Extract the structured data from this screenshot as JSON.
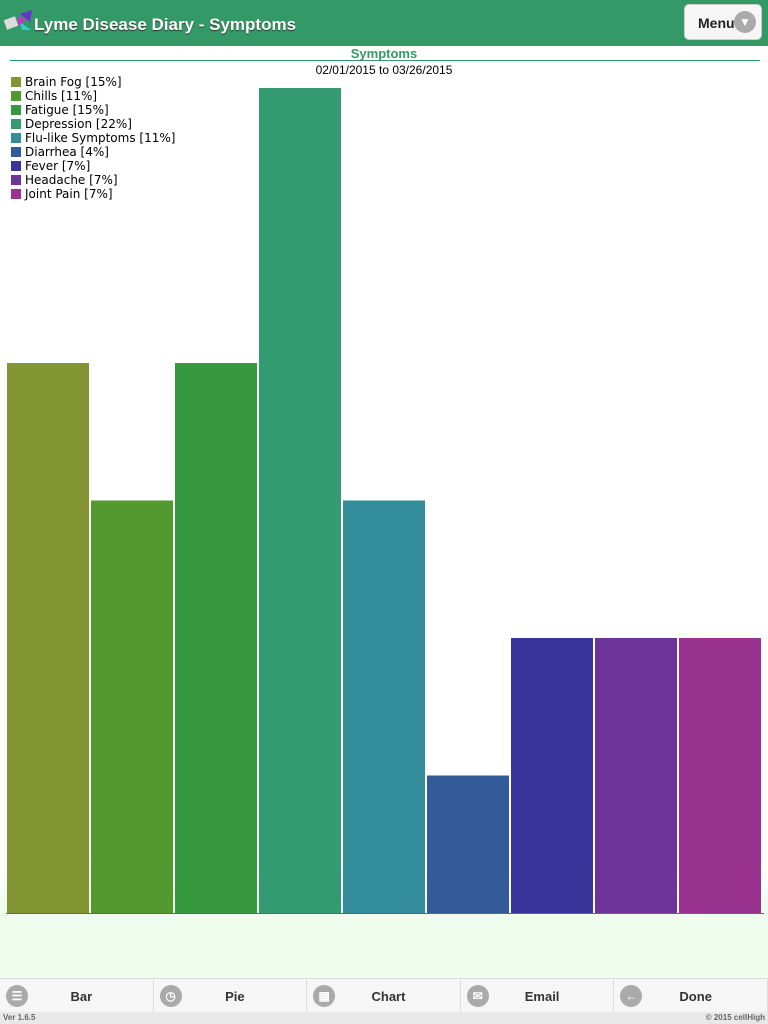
{
  "header": {
    "title": "Lyme Disease Diary - Symptoms",
    "menu_label": "Menu"
  },
  "chart_data": {
    "type": "bar",
    "title": "Symptoms",
    "subtitle": "02/01/2015 to 03/26/2015",
    "categories": [
      "Brain Fog",
      "Chills",
      "Fatigue",
      "Depression",
      "Flu-like Symptoms",
      "Diarrhea",
      "Fever",
      "Headache",
      "Joint Pain"
    ],
    "values": [
      4,
      3,
      4,
      6,
      3,
      1,
      2,
      2,
      2
    ],
    "legend": [
      "Brain Fog [15%]",
      "Chills [11%]",
      "Fatigue [15%]",
      "Depression [22%]",
      "Flu-like Symptoms [11%]",
      "Diarrhea [4%]",
      "Fever [7%]",
      "Headache [7%]",
      "Joint Pain [7%]"
    ],
    "colors": [
      "#839432",
      "#52992f",
      "#36993f",
      "#339a72",
      "#338c9a",
      "#335b99",
      "#3a3399",
      "#6e3399",
      "#99338f"
    ],
    "ylim": [
      0,
      6
    ],
    "legend_position": "top-left",
    "grid": false
  },
  "footer": {
    "buttons": [
      {
        "label": "Bar",
        "icon": "list-icon"
      },
      {
        "label": "Pie",
        "icon": "clock-icon"
      },
      {
        "label": "Chart",
        "icon": "grid-icon"
      },
      {
        "label": "Email",
        "icon": "mail-icon"
      },
      {
        "label": "Done",
        "icon": "back-arrow-icon"
      }
    ]
  },
  "status": {
    "version": "Ver 1.6.5",
    "copyright": "© 2015 cellHigh"
  }
}
